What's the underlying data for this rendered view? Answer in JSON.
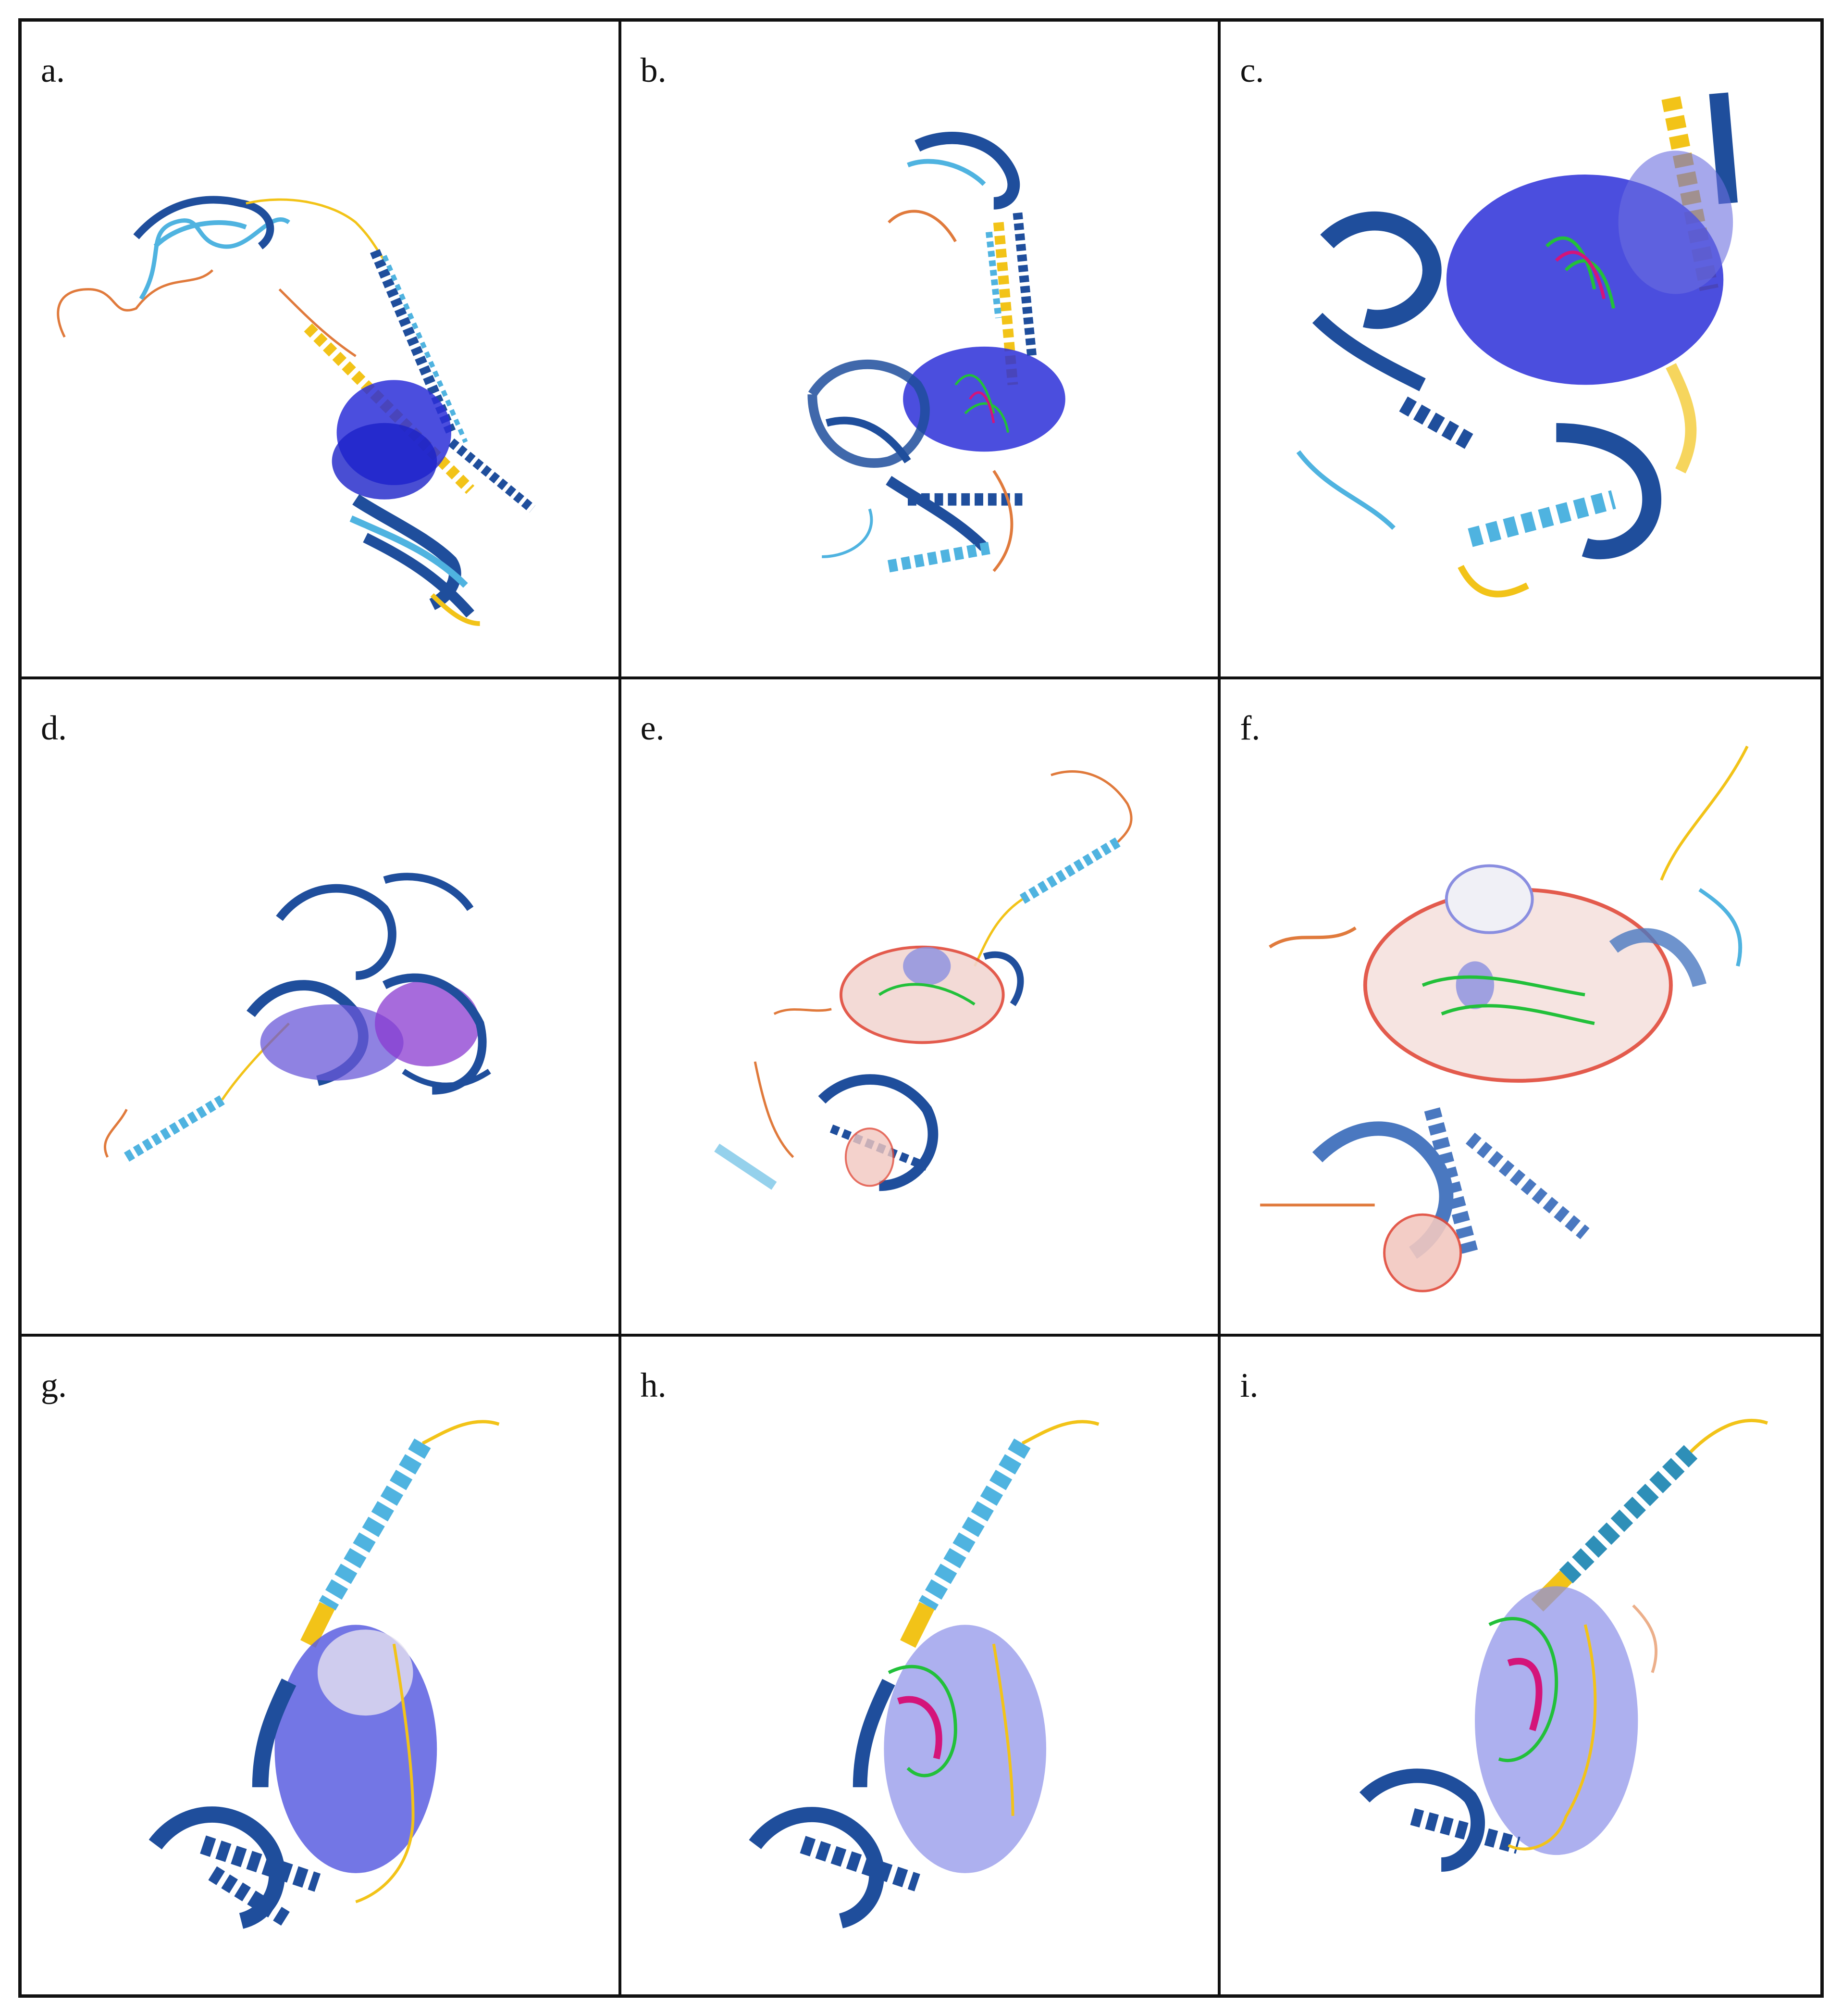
{
  "panels": [
    {
      "id": "a",
      "label": "a."
    },
    {
      "id": "b",
      "label": "b."
    },
    {
      "id": "c",
      "label": "c."
    },
    {
      "id": "d",
      "label": "d."
    },
    {
      "id": "e",
      "label": "e."
    },
    {
      "id": "f",
      "label": "f."
    },
    {
      "id": "g",
      "label": "g."
    },
    {
      "id": "h",
      "label": "h."
    },
    {
      "id": "i",
      "label": "i."
    }
  ],
  "colors": {
    "border": "#111111",
    "very_high_confidence": "#1f4e9c",
    "high_confidence": "#4fb3e0",
    "low_confidence": "#f2c318",
    "very_low_confidence": "#e07a3c",
    "pocket_mesh_blue": "#2b2fd8",
    "pocket_mesh_red": "#e04a3a",
    "ligand_green": "#22c03a",
    "ligand_magenta": "#d4147a"
  }
}
